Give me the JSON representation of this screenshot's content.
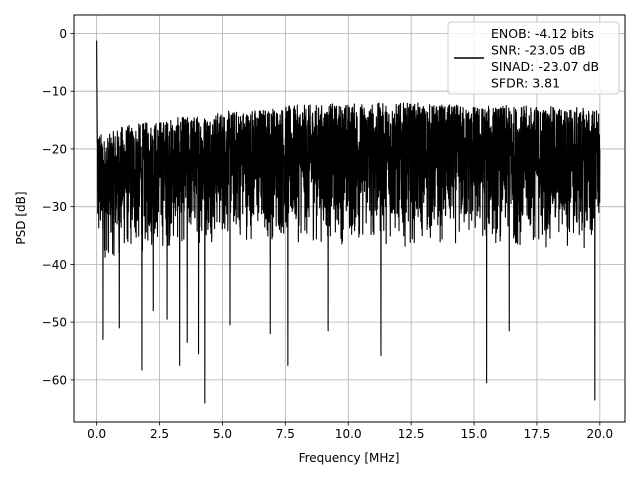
{
  "chart_data": {
    "type": "line",
    "xlabel": "Frequency [MHz]",
    "ylabel": "PSD [dB]",
    "xlim": [
      -0.9,
      21.0
    ],
    "ylim": [
      -67.3,
      3.2
    ],
    "x_ticks": [
      0.0,
      2.5,
      5.0,
      7.5,
      10.0,
      12.5,
      15.0,
      17.5,
      20.0
    ],
    "x_tick_labels": [
      "0.0",
      "2.5",
      "5.0",
      "7.5",
      "10.0",
      "12.5",
      "15.0",
      "17.5",
      "20.0"
    ],
    "y_ticks": [
      0,
      -10,
      -20,
      -30,
      -40,
      -50,
      -60
    ],
    "y_tick_labels": [
      "0",
      "−10",
      "−20",
      "−30",
      "−40",
      "−50",
      "−60"
    ],
    "grid": true,
    "legend_position": "top-right",
    "series": [
      {
        "name": "ENOB: -4.12 bits\nSNR: -23.05 dB\nSINAD: -23.07 dB\nSFDR: 3.81",
        "color": "#000000",
        "x_start": 0.0,
        "x_end": 20.0,
        "peak": {
          "x": 0.0,
          "y": 0.0
        },
        "upper_envelope": [
          [
            0.0,
            -16
          ],
          [
            0.3,
            -18
          ],
          [
            1.0,
            -16
          ],
          [
            2.5,
            -15
          ],
          [
            5.0,
            -13.5
          ],
          [
            7.5,
            -12.5
          ],
          [
            10.0,
            -12
          ],
          [
            12.5,
            -12
          ],
          [
            15.0,
            -12.5
          ],
          [
            17.5,
            -12.5
          ],
          [
            20.0,
            -13
          ]
        ],
        "lower_envelope": [
          [
            0.0,
            -40
          ],
          [
            2.5,
            -38
          ],
          [
            5.0,
            -36
          ],
          [
            10.0,
            -37
          ],
          [
            15.0,
            -37
          ],
          [
            20.0,
            -38
          ]
        ],
        "dips": [
          {
            "x": 0.25,
            "y": -53.0
          },
          {
            "x": 0.9,
            "y": -51.0
          },
          {
            "x": 1.8,
            "y": -58.3
          },
          {
            "x": 2.25,
            "y": -48.0
          },
          {
            "x": 2.8,
            "y": -49.5
          },
          {
            "x": 3.3,
            "y": -57.5
          },
          {
            "x": 3.6,
            "y": -53.5
          },
          {
            "x": 4.05,
            "y": -55.5
          },
          {
            "x": 4.3,
            "y": -64.0
          },
          {
            "x": 5.3,
            "y": -50.5
          },
          {
            "x": 6.9,
            "y": -52.0
          },
          {
            "x": 7.6,
            "y": -57.5
          },
          {
            "x": 9.2,
            "y": -51.5
          },
          {
            "x": 11.3,
            "y": -55.8
          },
          {
            "x": 15.5,
            "y": -60.5
          },
          {
            "x": 16.4,
            "y": -51.5
          },
          {
            "x": 19.8,
            "y": -63.5
          }
        ]
      }
    ]
  }
}
